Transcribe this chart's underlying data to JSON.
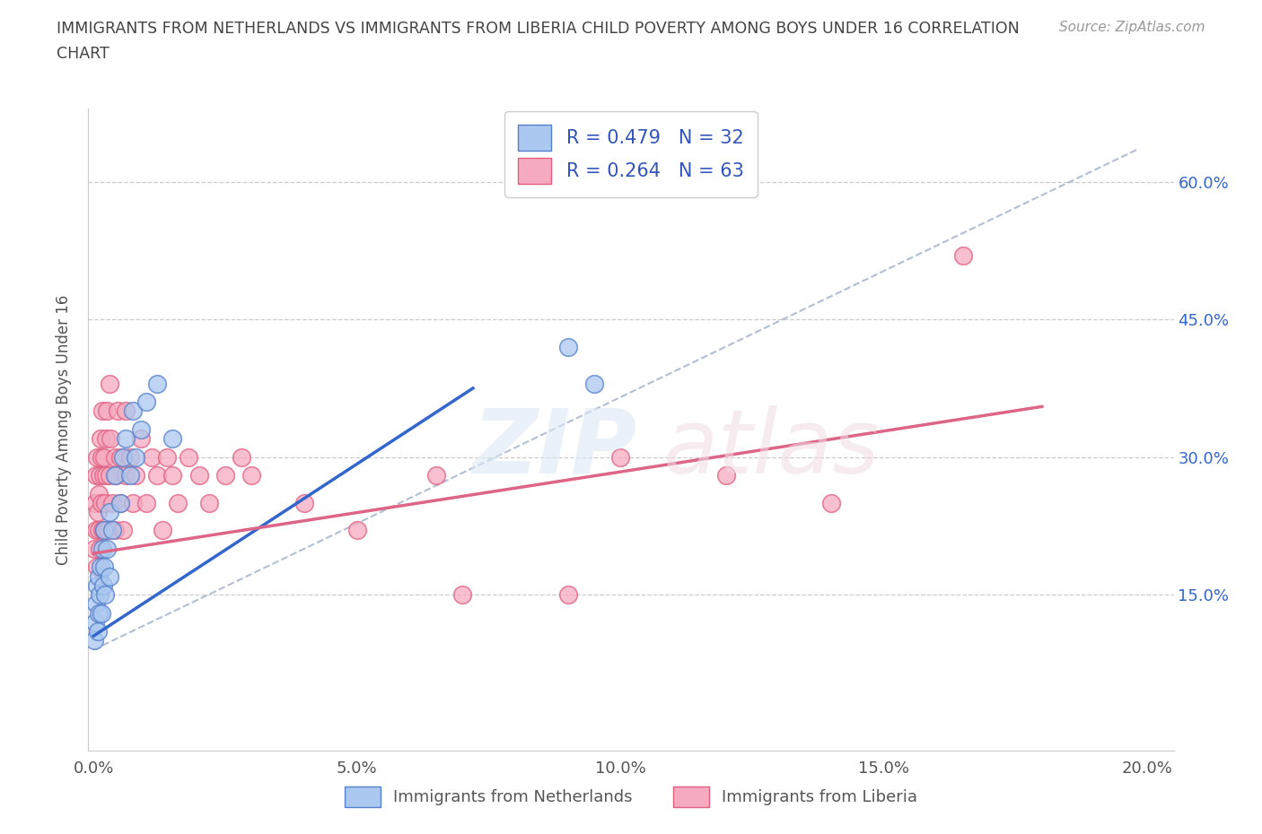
{
  "title_line1": "IMMIGRANTS FROM NETHERLANDS VS IMMIGRANTS FROM LIBERIA CHILD POVERTY AMONG BOYS UNDER 16 CORRELATION",
  "title_line2": "CHART",
  "source_text": "Source: ZipAtlas.com",
  "ylabel": "Child Poverty Among Boys Under 16",
  "xlim": [
    -0.001,
    0.205
  ],
  "ylim": [
    -0.02,
    0.68
  ],
  "yticks": [
    0.15,
    0.3,
    0.45,
    0.6
  ],
  "ytick_labels": [
    "15.0%",
    "30.0%",
    "45.0%",
    "60.0%"
  ],
  "xticks": [
    0.0,
    0.05,
    0.1,
    0.15,
    0.2
  ],
  "xtick_labels": [
    "0.0%",
    "5.0%",
    "10.0%",
    "15.0%",
    "20.0%"
  ],
  "netherlands_color": "#aac8f0",
  "liberia_color": "#f5aabf",
  "netherlands_edge": "#5580cc",
  "liberia_edge": "#e06080",
  "trend_color": "#aab8cc",
  "netherlands_line_color": "#3366cc",
  "liberia_line_color": "#dd6688",
  "R_netherlands": 0.479,
  "N_netherlands": 32,
  "R_liberia": 0.264,
  "N_liberia": 63,
  "legend_label_netherlands": "Immigrants from Netherlands",
  "legend_label_liberia": "Immigrants from Liberia",
  "nl_x": [
    0.0002,
    0.0003,
    0.0005,
    0.0007,
    0.0008,
    0.001,
    0.001,
    0.0012,
    0.0013,
    0.0015,
    0.0016,
    0.0018,
    0.002,
    0.002,
    0.0022,
    0.0025,
    0.003,
    0.003,
    0.0035,
    0.004,
    0.005,
    0.0055,
    0.006,
    0.007,
    0.0075,
    0.008,
    0.009,
    0.01,
    0.012,
    0.015,
    0.09,
    0.095
  ],
  "nl_y": [
    0.1,
    0.12,
    0.14,
    0.16,
    0.11,
    0.13,
    0.17,
    0.15,
    0.18,
    0.13,
    0.2,
    0.16,
    0.18,
    0.22,
    0.15,
    0.2,
    0.17,
    0.24,
    0.22,
    0.28,
    0.25,
    0.3,
    0.32,
    0.28,
    0.35,
    0.3,
    0.33,
    0.36,
    0.38,
    0.32,
    0.42,
    0.38
  ],
  "lib_x": [
    0.0002,
    0.0003,
    0.0004,
    0.0005,
    0.0006,
    0.0007,
    0.0008,
    0.0009,
    0.001,
    0.0011,
    0.0012,
    0.0013,
    0.0014,
    0.0015,
    0.0016,
    0.0017,
    0.0018,
    0.002,
    0.002,
    0.0022,
    0.0023,
    0.0024,
    0.0025,
    0.0027,
    0.003,
    0.003,
    0.0032,
    0.0035,
    0.004,
    0.004,
    0.0042,
    0.0045,
    0.005,
    0.005,
    0.0055,
    0.006,
    0.006,
    0.007,
    0.0075,
    0.008,
    0.009,
    0.01,
    0.011,
    0.012,
    0.013,
    0.014,
    0.015,
    0.016,
    0.018,
    0.02,
    0.022,
    0.025,
    0.028,
    0.03,
    0.04,
    0.05,
    0.065,
    0.07,
    0.09,
    0.1,
    0.12,
    0.14,
    0.165
  ],
  "lib_y": [
    0.2,
    0.25,
    0.22,
    0.28,
    0.18,
    0.3,
    0.24,
    0.22,
    0.26,
    0.2,
    0.28,
    0.32,
    0.25,
    0.3,
    0.22,
    0.35,
    0.28,
    0.22,
    0.3,
    0.25,
    0.32,
    0.28,
    0.35,
    0.22,
    0.28,
    0.38,
    0.32,
    0.25,
    0.3,
    0.22,
    0.28,
    0.35,
    0.25,
    0.3,
    0.22,
    0.28,
    0.35,
    0.3,
    0.25,
    0.28,
    0.32,
    0.25,
    0.3,
    0.28,
    0.22,
    0.3,
    0.28,
    0.25,
    0.3,
    0.28,
    0.25,
    0.28,
    0.3,
    0.28,
    0.25,
    0.22,
    0.28,
    0.15,
    0.15,
    0.3,
    0.28,
    0.25,
    0.52
  ],
  "nl_line_x": [
    0.0,
    0.072
  ],
  "nl_line_y": [
    0.105,
    0.375
  ],
  "lib_line_x": [
    0.0,
    0.18
  ],
  "lib_line_y": [
    0.195,
    0.355
  ],
  "trend_line_x": [
    0.0,
    0.198
  ],
  "trend_line_y": [
    0.09,
    0.635
  ]
}
